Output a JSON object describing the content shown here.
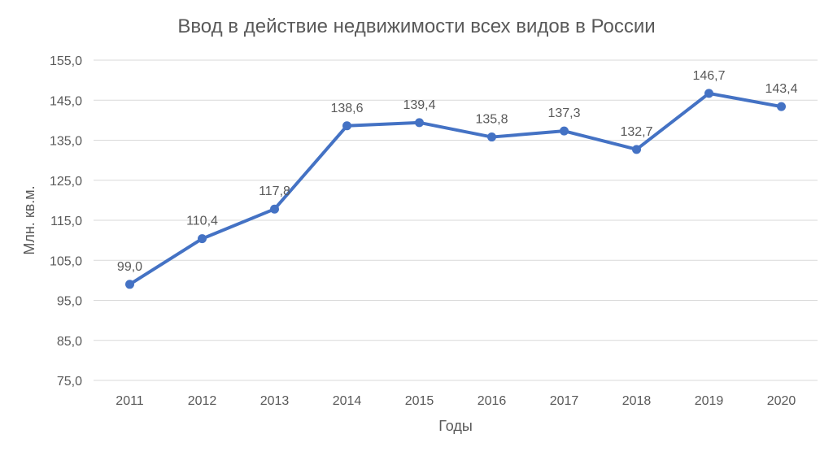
{
  "chart_data": {
    "type": "line",
    "title": "Ввод в действие недвижимости всех видов в России",
    "xlabel": "Годы",
    "ylabel": "Млн. кв.м.",
    "ylim": [
      75,
      155
    ],
    "yticks": [
      "75,0",
      "85,0",
      "95,0",
      "105,0",
      "115,0",
      "125,0",
      "135,0",
      "145,0",
      "155,0"
    ],
    "grid": true,
    "legend": "none",
    "categories": [
      "2011",
      "2012",
      "2013",
      "2014",
      "2015",
      "2016",
      "2017",
      "2018",
      "2019",
      "2020"
    ],
    "series": [
      {
        "values": [
          99.0,
          110.4,
          117.8,
          138.6,
          139.4,
          135.8,
          137.3,
          132.7,
          146.7,
          143.4
        ],
        "labels": [
          "99,0",
          "110,4",
          "117,8",
          "138,6",
          "139,4",
          "135,8",
          "137,3",
          "132,7",
          "146,7",
          "143,4"
        ],
        "color": "#4472C4"
      }
    ]
  },
  "colors": {
    "text": "#595959",
    "grid": "#D9D9D9"
  }
}
